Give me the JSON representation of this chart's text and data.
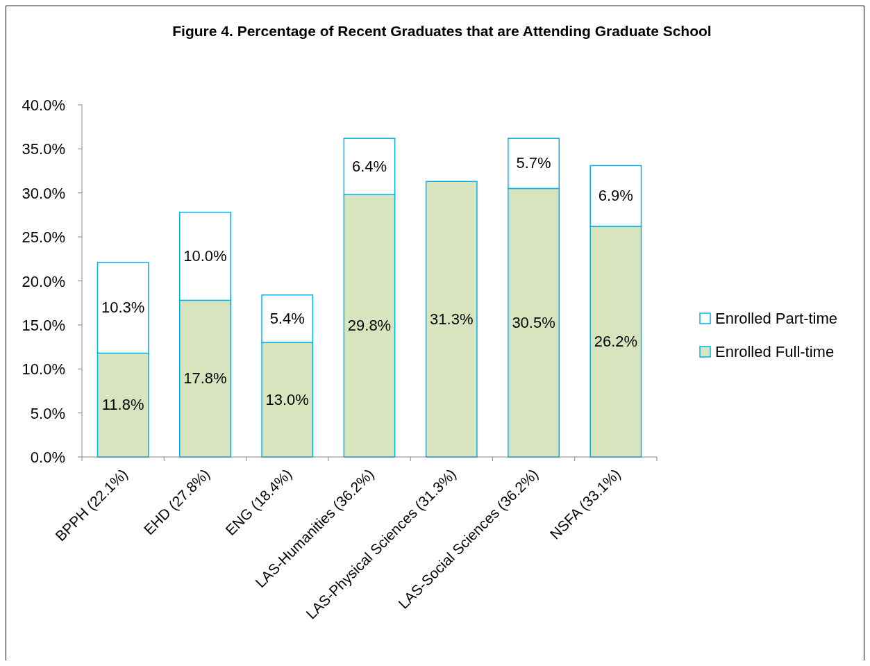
{
  "chart_data": {
    "type": "bar",
    "title": "Figure 4.  Percentage of Recent Graduates that are Attending Graduate School",
    "categories": [
      "BPPH (22.1%)",
      "EHD (27.8%)",
      "ENG (18.4%)",
      "LAS-Humanities (36.2%)",
      "LAS-Physical Sciences (31.3%)",
      "LAS-Social Sciences (36.2%)",
      "NSFA (33.1%)"
    ],
    "stacked": true,
    "series": [
      {
        "name": "Enrolled Full-time",
        "color": "#d7e4bd",
        "values": [
          11.8,
          17.8,
          13.0,
          29.8,
          31.3,
          30.5,
          26.2
        ],
        "value_labels": [
          "11.8%",
          "17.8%",
          "13.0%",
          "29.8%",
          "31.3%",
          "30.5%",
          "26.2%"
        ]
      },
      {
        "name": "Enrolled Part-time",
        "color": "#ffffff",
        "values": [
          10.3,
          10.0,
          5.4,
          6.4,
          0,
          5.7,
          6.9
        ],
        "value_labels": [
          "10.3%",
          "10.0%",
          "5.4%",
          "6.4%",
          null,
          "5.7%",
          "6.9%"
        ]
      }
    ],
    "ylim": [
      0,
      40
    ],
    "yticks": [
      {
        "value": 0,
        "label": "0.0%"
      },
      {
        "value": 5,
        "label": "5.0%"
      },
      {
        "value": 10,
        "label": "10.0%"
      },
      {
        "value": 15,
        "label": "15.0%"
      },
      {
        "value": 20,
        "label": "20.0%"
      },
      {
        "value": 25,
        "label": "25.0%"
      },
      {
        "value": 30,
        "label": "30.0%"
      },
      {
        "value": 35,
        "label": "35.0%"
      },
      {
        "value": 40,
        "label": "40.0%"
      }
    ],
    "grid": false,
    "legend": "right"
  }
}
